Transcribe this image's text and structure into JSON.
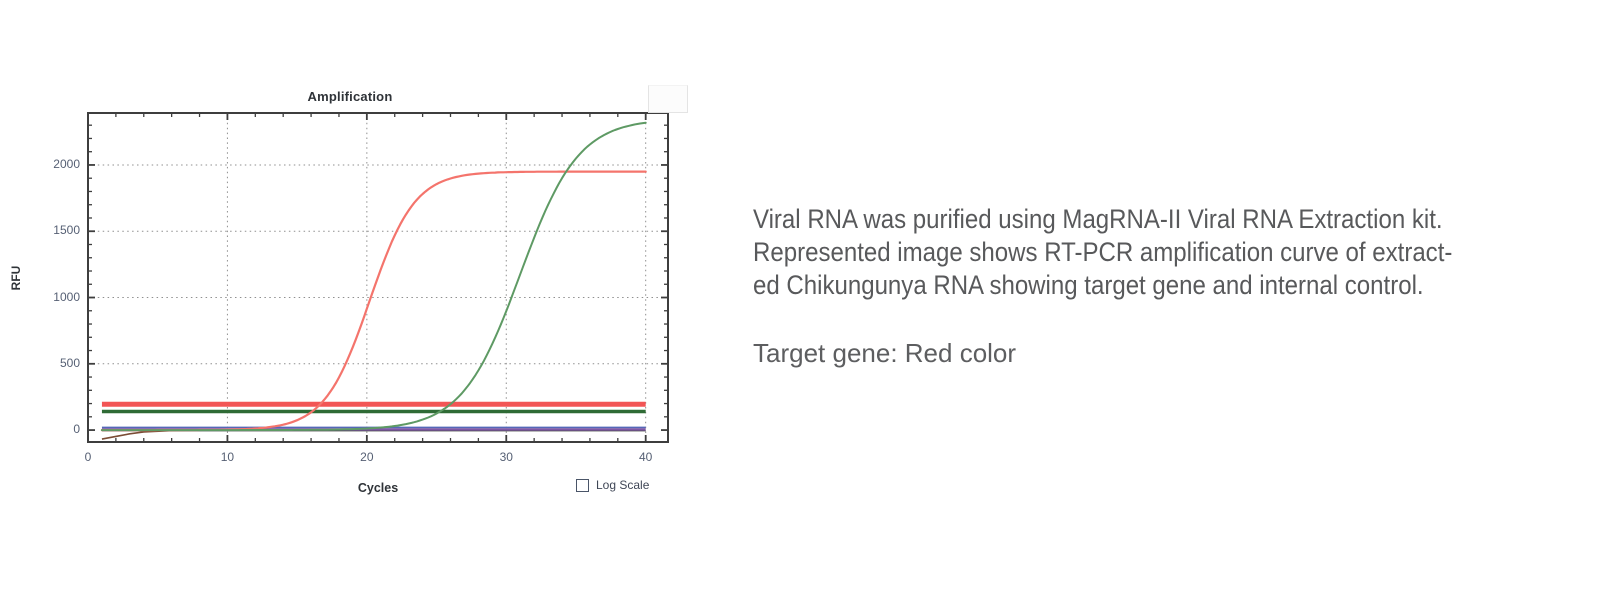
{
  "chart_data": {
    "type": "line",
    "title": "Amplification",
    "xlabel": "Cycles",
    "ylabel": "RFU",
    "log_scale": {
      "label": "Log Scale",
      "checked": false
    },
    "xlim": [
      0,
      41.6
    ],
    "ylim": [
      -90,
      2392
    ],
    "x_major_ticks": [
      0,
      10,
      20,
      30,
      40
    ],
    "x_minor_step": 2,
    "y_major_ticks": [
      0,
      500,
      1000,
      1500,
      2000
    ],
    "y_minor_step": 100,
    "grid": {
      "style": "dotted",
      "x_lines": [
        10,
        20,
        30,
        40
      ],
      "y_lines": [
        500,
        1000,
        1500,
        2000
      ]
    },
    "series": [
      {
        "name": "baseline-dark-flat",
        "kind": "hline",
        "color": "#474747",
        "stroke_width": 1.4,
        "rfu": -5,
        "x_range": [
          1,
          40
        ]
      },
      {
        "name": "baseline-blue-flat",
        "kind": "hline",
        "color": "#5468b8",
        "stroke_width": 1.6,
        "rfu": 20,
        "x_range": [
          1,
          40
        ]
      },
      {
        "name": "baseline-start-dip",
        "kind": "points",
        "color": "#7b4c35",
        "stroke_width": 1.6,
        "points": [
          [
            1,
            -68
          ],
          [
            2,
            -48
          ],
          [
            3,
            -28
          ],
          [
            4,
            -14
          ],
          [
            6,
            -4
          ],
          [
            9,
            0
          ]
        ]
      },
      {
        "name": "baseline-purple-flat",
        "kind": "hline",
        "color": "#7e57a5",
        "stroke_width": 2.4,
        "rfu": 5,
        "x_range": [
          1,
          40
        ]
      },
      {
        "name": "internal-control-threshold",
        "kind": "hline",
        "color": "#2f6b35",
        "stroke_width": 3.5,
        "rfu": 140,
        "x_range": [
          1,
          40
        ]
      },
      {
        "name": "target-gene-threshold",
        "kind": "hline",
        "color": "#f25555",
        "stroke_width": 5,
        "rfu": 195,
        "x_range": [
          1,
          40
        ]
      },
      {
        "name": "target-gene-chikungunya-curve",
        "kind": "sigmoid",
        "color": "#f4746c",
        "stroke_width": 2.2,
        "plateau_rfu": 1950,
        "midpoint_cycle": 20.2,
        "slope": 0.62,
        "x_range": [
          1,
          40
        ]
      },
      {
        "name": "internal-control-curve",
        "kind": "sigmoid",
        "color": "#5e9a64",
        "stroke_width": 2,
        "plateau_rfu": 2350,
        "midpoint_cycle": 31,
        "slope": 0.48,
        "x_range": [
          1,
          40
        ]
      }
    ]
  },
  "description": {
    "lines": [
      "Viral RNA was purified using MagRNA-II Viral RNA Extraction kit.",
      "Represented image shows RT-PCR amplification curve of extract-",
      "ed Chikungunya RNA showing target gene and internal control."
    ],
    "target_note": "Target gene: Red color"
  }
}
